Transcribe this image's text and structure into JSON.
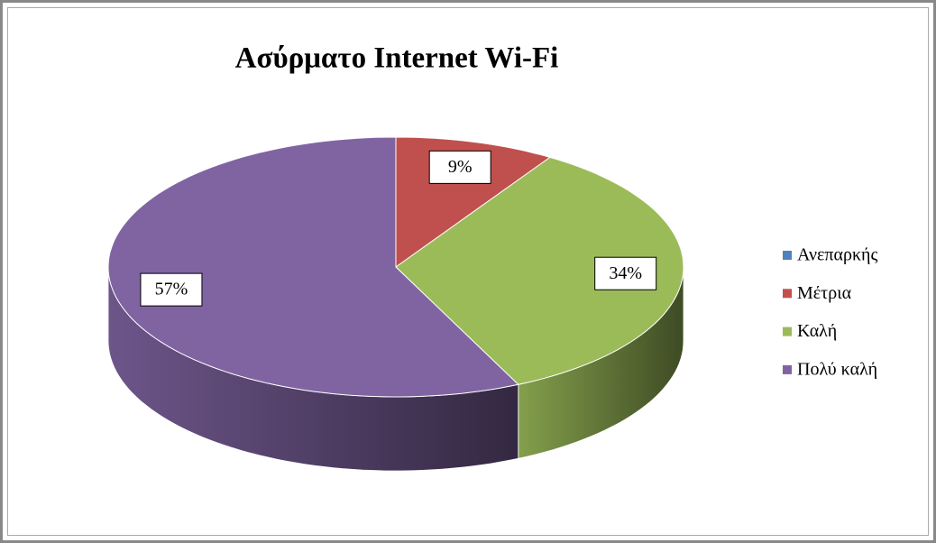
{
  "chart_data": {
    "type": "pie",
    "title": "Ασύρματο Internet Wi-Fi",
    "categories": [
      "Ανεπαρκής",
      "Μέτρια",
      "Καλή",
      "Πολύ καλή"
    ],
    "values": [
      0,
      9,
      34,
      57
    ],
    "value_labels": [
      null,
      "9%",
      "34%",
      "57%"
    ],
    "colors": [
      "#4f81bd",
      "#c0504d",
      "#9bbb59",
      "#8064a2"
    ],
    "legend": "right"
  }
}
